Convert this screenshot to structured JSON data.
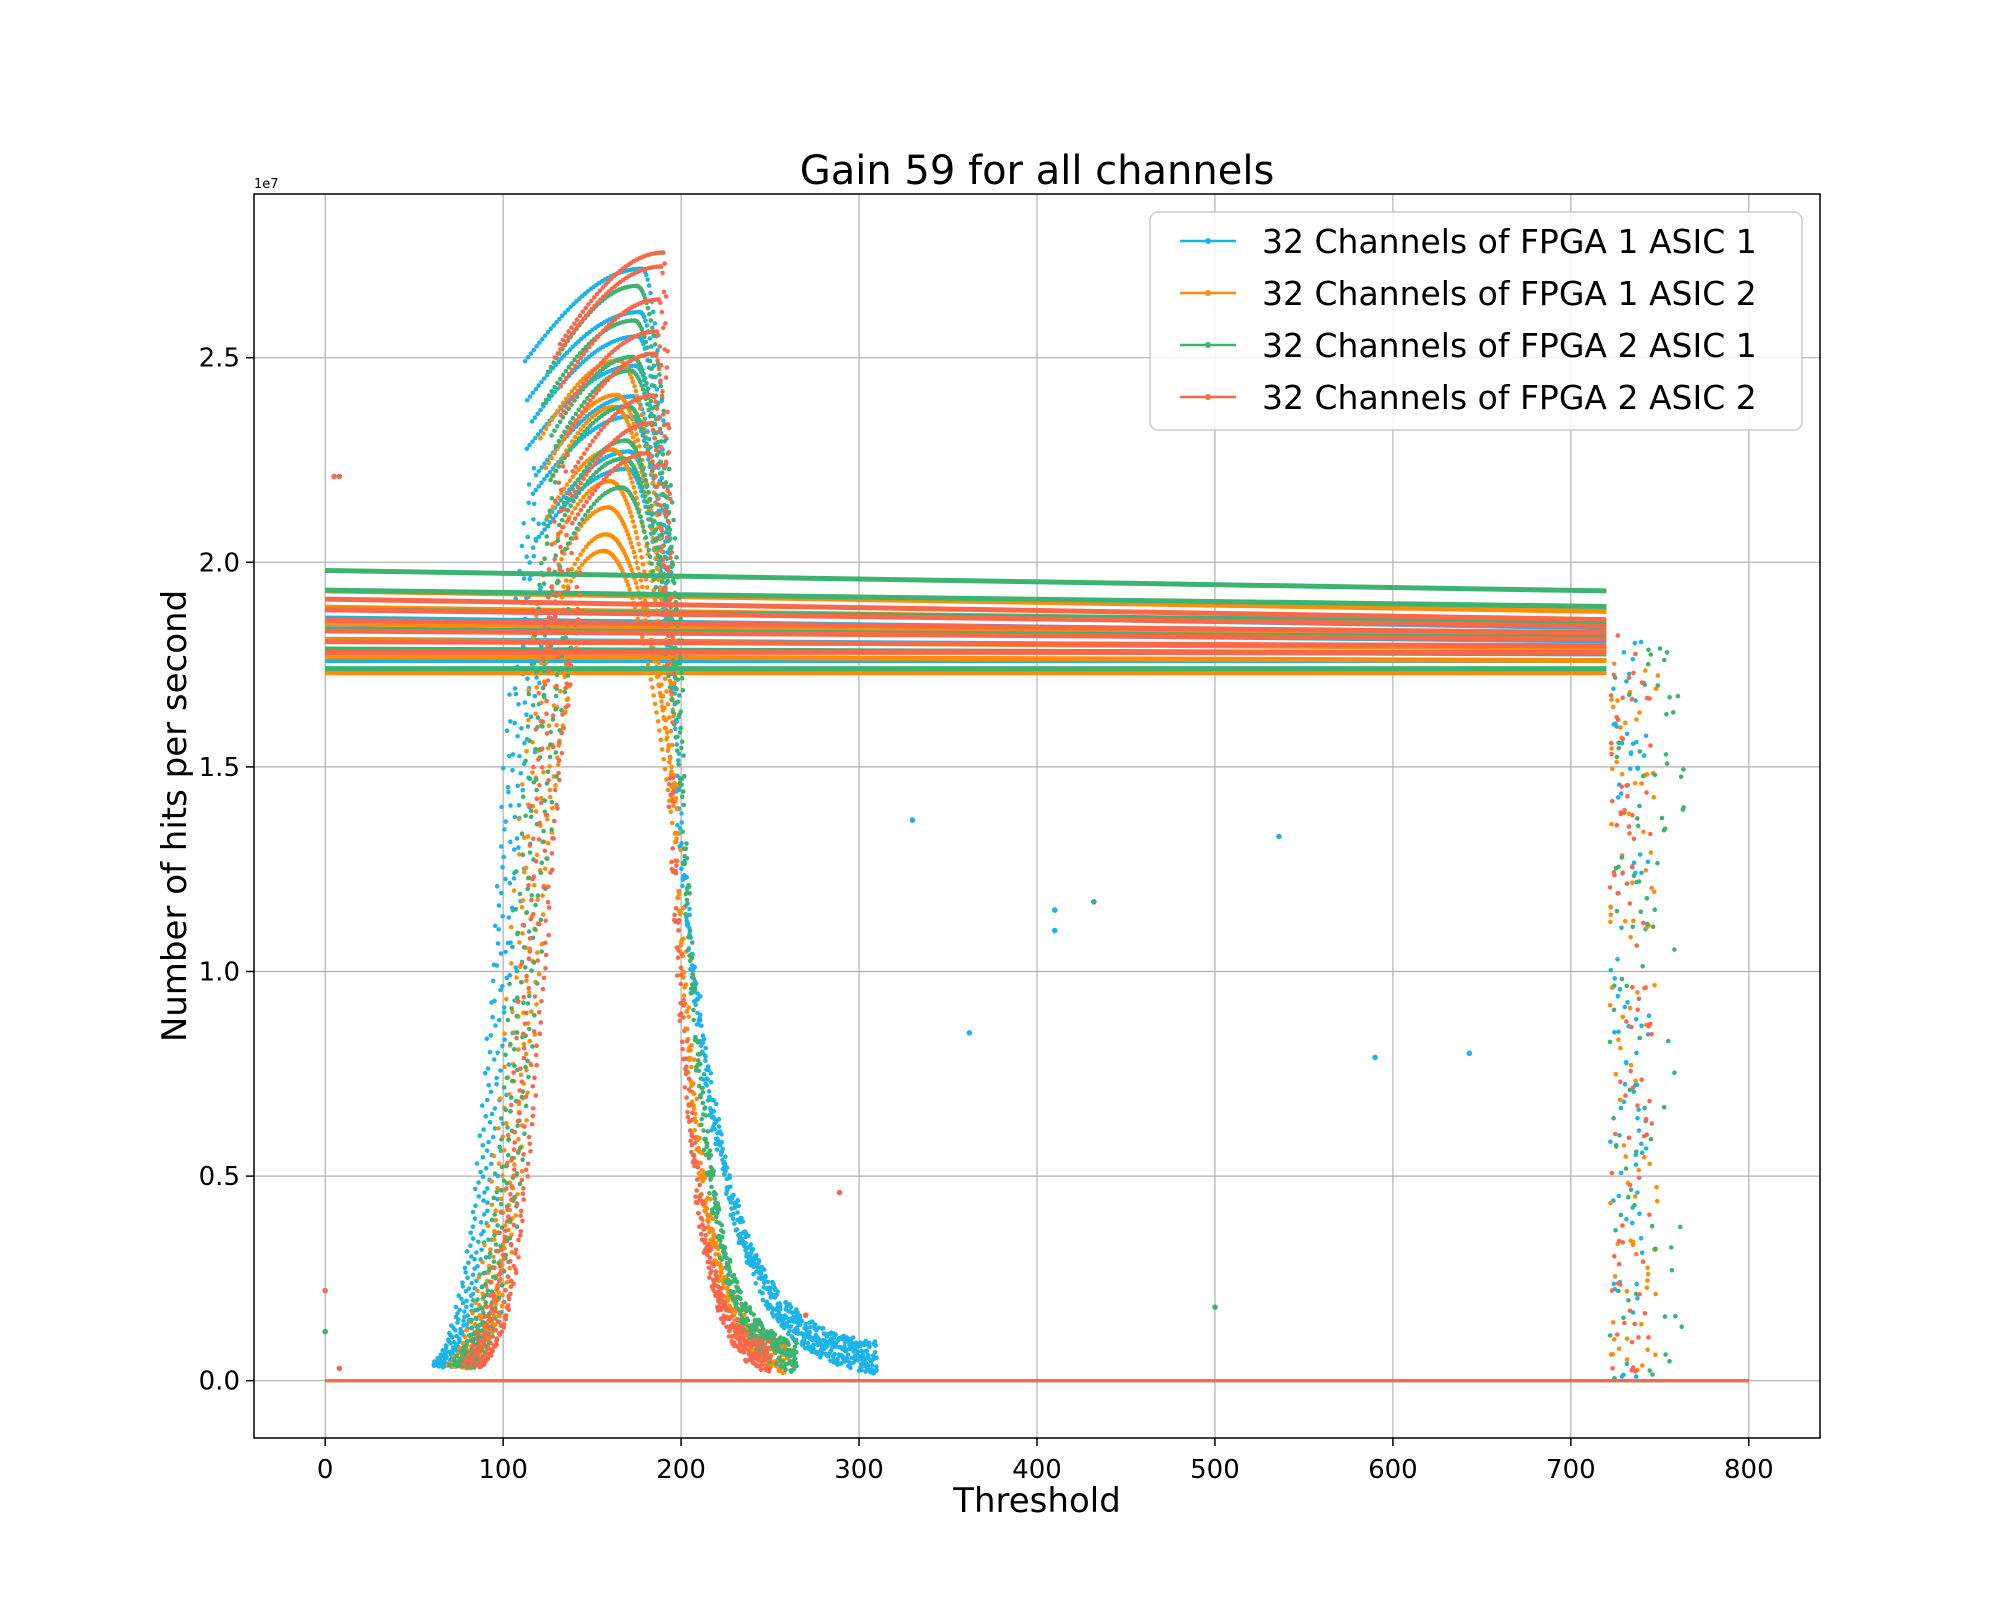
{
  "chart_data": {
    "type": "scatter",
    "title": "Gain 59 for all channels",
    "xlabel": "Threshold",
    "ylabel": "Number of hits per second",
    "y_offset_label": "1e7",
    "xlim": [
      -40,
      840
    ],
    "ylim": [
      -0.14,
      2.9
    ],
    "x_ticks": [
      0,
      100,
      200,
      300,
      400,
      500,
      600,
      700,
      800
    ],
    "y_ticks": [
      0.0,
      0.5,
      1.0,
      1.5,
      2.0,
      2.5
    ],
    "y_tick_labels": [
      "0.0",
      "0.5",
      "1.0",
      "1.5",
      "2.0",
      "2.5"
    ],
    "grid": true,
    "legend_position": "top-right",
    "series": [
      {
        "name": "32 Channels of FPGA 1 ASIC 1",
        "color": "#1cb4e8",
        "plateau": {
          "x_start": 0,
          "x_end": 720,
          "y_min": 1.76,
          "y_max": 1.89
        },
        "peak": {
          "x_rise": 100,
          "x_peak": 178,
          "x_fall": 195,
          "y_peak": 2.73,
          "tail_end": 310
        },
        "cutoff_x": 730,
        "zero_level": {
          "x_start": 0,
          "x_end": 800,
          "y": 0.0
        },
        "outliers": [
          [
            330,
            1.37
          ],
          [
            536,
            1.33
          ],
          [
            410,
            1.15
          ],
          [
            410,
            1.1
          ],
          [
            362,
            0.85
          ],
          [
            590,
            0.79
          ],
          [
            643,
            0.8
          ]
        ]
      },
      {
        "name": "32 Channels of FPGA 1 ASIC 2",
        "color": "#ff8c0a",
        "plateau": {
          "x_start": 0,
          "x_end": 720,
          "y_min": 1.73,
          "y_max": 1.93
        },
        "peak": {
          "x_rise": 112,
          "x_peak": 165,
          "x_fall": 195,
          "y_peak": 2.52,
          "tail_end": 260
        },
        "cutoff_x": 735,
        "zero_level": {
          "x_start": 0,
          "x_end": 800,
          "y": 0.0
        },
        "outliers": []
      },
      {
        "name": "32 Channels of FPGA 2 ASIC 1",
        "color": "#3cb371",
        "plateau": {
          "x_start": 0,
          "x_end": 720,
          "y_min": 1.74,
          "y_max": 1.98
        },
        "peak": {
          "x_rise": 112,
          "x_peak": 175,
          "x_fall": 198,
          "y_peak": 2.68,
          "tail_end": 265
        },
        "cutoff_x": 750,
        "zero_level": {
          "x_start": 0,
          "x_end": 800,
          "y": 0.0
        },
        "outliers": [
          [
            432,
            1.17
          ],
          [
            500,
            0.18
          ],
          [
            0,
            0.12
          ]
        ]
      },
      {
        "name": "32 Channels of FPGA 2 ASIC 2",
        "color": "#f9684a",
        "plateau": {
          "x_start": 0,
          "x_end": 720,
          "y_min": 1.78,
          "y_max": 1.91
        },
        "peak": {
          "x_rise": 118,
          "x_peak": 190,
          "x_fall": 193,
          "y_peak": 2.8,
          "tail_end": 250
        },
        "cutoff_x": 732,
        "zero_level": {
          "x_start": 0,
          "x_end": 800,
          "y": 0.0
        },
        "outliers": [
          [
            5,
            2.21
          ],
          [
            8,
            2.21
          ],
          [
            0,
            0.22
          ],
          [
            289,
            0.46
          ],
          [
            270,
            0.16
          ],
          [
            8,
            0.03
          ]
        ]
      }
    ]
  }
}
